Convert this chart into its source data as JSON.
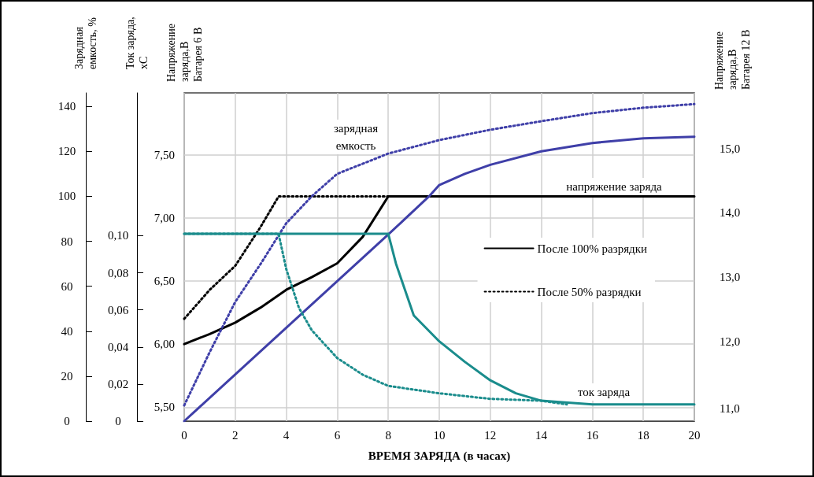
{
  "chart_data": {
    "type": "line",
    "xlabel": "ВРЕМЯ ЗАРЯДА (в часах)",
    "ylabel": "Зарядная\nемкость, %",
    "y2label": "Ток заряда,\nxC",
    "y3label": "Напряжение\nзаряда,В\nБатарея 6 В",
    "xlim": [
      0,
      20
    ],
    "xticks": [
      0,
      2,
      4,
      6,
      8,
      10,
      12,
      14,
      16,
      18,
      20
    ],
    "ylim": [
      0,
      146
    ],
    "yticks": [
      0,
      20,
      40,
      60,
      80,
      100,
      120,
      140
    ],
    "y2lim": [
      0,
      0.177
    ],
    "y2ticks": [
      0,
      {
        "value": 0.02,
        "label": "0,02"
      },
      {
        "value": 0.04,
        "label": "0,04"
      },
      {
        "value": 0.06,
        "label": "0,06"
      },
      {
        "value": 0.08,
        "label": "0,08"
      },
      {
        "value": 0.1,
        "label": "0,10"
      }
    ],
    "y3lim": [
      5.39,
      7.99
    ],
    "y3ticks": [
      {
        "value": 5.5,
        "label": "5,50"
      },
      {
        "value": 6,
        "label": "6,00"
      },
      {
        "value": 6.5,
        "label": "6,50"
      },
      {
        "value": 7,
        "label": "7,00"
      },
      {
        "value": 7.5,
        "label": "7,50"
      }
    ],
    "grid": true,
    "legend": "right",
    "marker": "none",
    "annotations": [
      "зарядная\nемкость",
      "напряжение заряда",
      "ток заряда",
      "Напряжение\nзаряда,В\nБатарея 12 В",
      "15,0",
      "14,0",
      "13,0",
      "12,0",
      "11,0"
    ],
    "series": [
      {
        "name": "После 100% разрядки",
        "color": "#000000",
        "line_style": "solid",
        "axis": "y3",
        "x": [
          0,
          1,
          2,
          3,
          4,
          5,
          6,
          7,
          8,
          20
        ],
        "values": [
          6.0,
          6.08,
          6.17,
          6.29,
          6.43,
          6.53,
          6.64,
          6.85,
          7.17,
          7.17
        ]
      },
      {
        "name": "После 50% разрядки",
        "color": "#000000",
        "line_style": "dotted",
        "axis": "y3",
        "x": [
          0,
          1,
          2,
          3,
          3.7,
          8
        ],
        "values": [
          6.2,
          6.43,
          6.62,
          6.93,
          7.17,
          7.17
        ]
      },
      {
        "color": "#3f3fa8",
        "line_style": "solid",
        "x": [
          0,
          8,
          9.6,
          10,
          11,
          12,
          14,
          16,
          18,
          20
        ],
        "values": [
          0,
          83,
          100,
          105,
          110,
          114,
          120,
          123.7,
          125.8,
          126.5
        ]
      },
      {
        "color": "#3f3fa8",
        "line_style": "dotted",
        "x": [
          0,
          1,
          2,
          3,
          3.7,
          4,
          5,
          6,
          8,
          10,
          12,
          14,
          16,
          18,
          20
        ],
        "values": [
          7,
          30.7,
          53,
          70,
          82.6,
          88,
          100,
          110,
          119,
          125,
          129.6,
          133.4,
          137,
          139.4,
          141
        ]
      },
      {
        "color": "#1a8c8c",
        "line_style": "solid",
        "axis": "y2",
        "x": [
          0,
          8,
          8.3,
          9,
          10,
          11,
          12,
          13,
          14,
          16,
          20
        ],
        "values": [
          0.101,
          0.101,
          0.085,
          0.057,
          0.043,
          0.032,
          0.022,
          0.015,
          0.011,
          0.009,
          0.009
        ]
      },
      {
        "color": "#1a8c8c",
        "line_style": "dotted",
        "axis": "y2",
        "x": [
          0,
          3.7,
          4,
          4.5,
          5,
          6,
          7,
          8,
          10,
          12,
          14,
          15
        ],
        "values": [
          0.101,
          0.101,
          0.082,
          0.061,
          0.049,
          0.034,
          0.025,
          0.019,
          0.015,
          0.012,
          0.011,
          0.009
        ]
      }
    ]
  }
}
